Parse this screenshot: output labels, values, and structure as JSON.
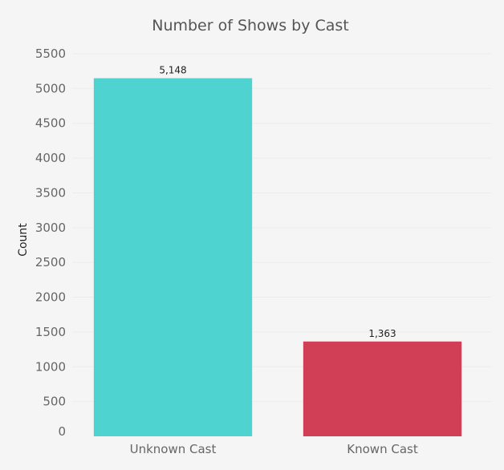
{
  "chart_data": {
    "type": "bar",
    "title": "Number of Shows by Cast",
    "xlabel": "",
    "ylabel": "Count",
    "categories": [
      "Unknown Cast",
      "Known Cast"
    ],
    "values": [
      5148,
      1363
    ],
    "value_labels": [
      "5,148",
      "1,363"
    ],
    "colors": [
      "#4fd3d1",
      "#d03f56"
    ],
    "ylim": [
      0,
      5500
    ],
    "yticks": [
      0,
      500,
      1000,
      1500,
      2000,
      2500,
      3000,
      3500,
      4000,
      4500,
      5000,
      5500
    ],
    "grid": true,
    "legend": "none"
  }
}
